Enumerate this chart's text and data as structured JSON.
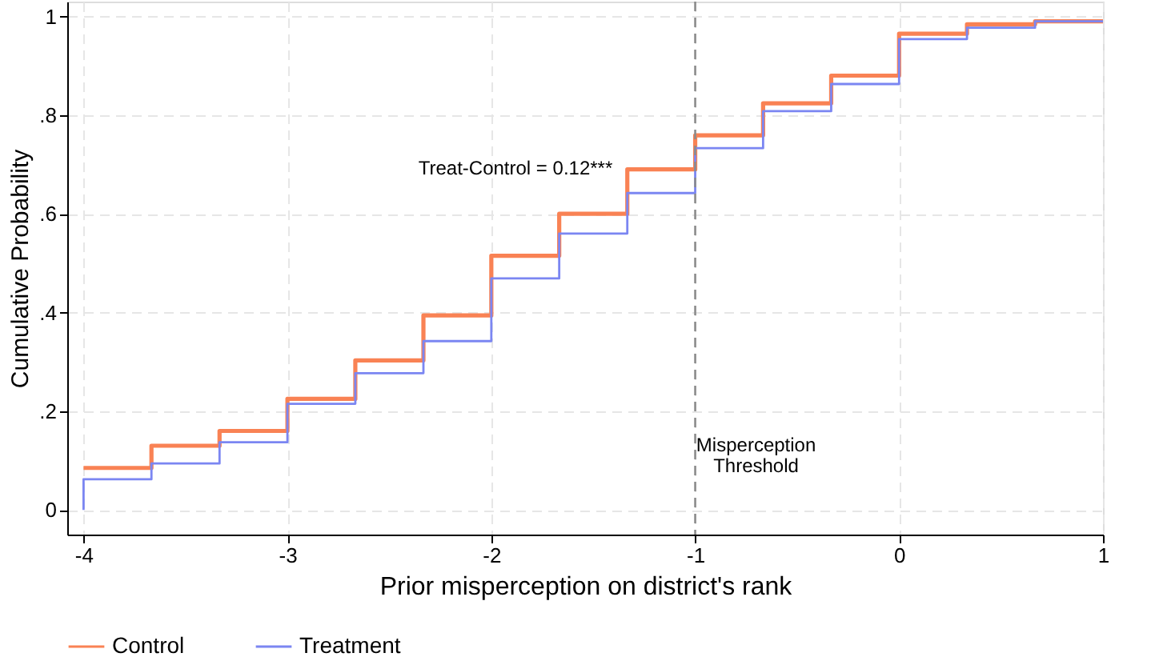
{
  "chart_data": {
    "type": "step",
    "xlabel": "Prior misperception on district's rank",
    "ylabel": "Cumulative Probability",
    "series": [
      {
        "name": "Control",
        "color": "#f98254",
        "x": [
          -4,
          -3.667,
          -3.333,
          -3,
          -2.667,
          -2.333,
          -2,
          -1.667,
          -1.333,
          -1,
          -0.667,
          -0.333,
          0,
          0.333,
          0.667,
          1
        ],
        "values": [
          0.085,
          0.13,
          0.16,
          0.225,
          0.303,
          0.394,
          0.515,
          0.6,
          0.69,
          0.759,
          0.824,
          0.88,
          0.965,
          0.984,
          0.99,
          0.99
        ]
      },
      {
        "name": "Treatment",
        "color": "#7b86f2",
        "x": [
          -4,
          -4,
          -3.667,
          -3.333,
          -3,
          -2.667,
          -2.333,
          -2,
          -1.667,
          -1.333,
          -1,
          -0.667,
          -0.333,
          0,
          0.333,
          0.667,
          1
        ],
        "values": [
          0,
          0.062,
          0.094,
          0.137,
          0.215,
          0.277,
          0.342,
          0.469,
          0.56,
          0.642,
          0.733,
          0.808,
          0.863,
          0.954,
          0.977,
          0.99,
          0.99
        ]
      }
    ],
    "xlim": [
      -4.08,
      1
    ],
    "xticks": [
      -4,
      -3,
      -2,
      -1,
      0,
      1
    ],
    "ylim": [
      -0.05,
      1.03
    ],
    "yticks": [
      0,
      {
        "value": 0.2,
        "label": ".2"
      },
      {
        "value": 0.4,
        "label": ".4"
      },
      {
        "value": 0.6,
        "label": ".6"
      },
      {
        "value": 0.8,
        "label": ".8"
      },
      1
    ],
    "ref_lines": [
      {
        "axis": "x",
        "value": -1,
        "label": "Misperception\nThreshold",
        "color": "#8c8c8c",
        "line_style": "dashed"
      }
    ],
    "annotations": [
      "Treat-Control = 0.12***"
    ],
    "grid": true,
    "legend": "bottom",
    "line_style": "solid",
    "marker": "none"
  }
}
